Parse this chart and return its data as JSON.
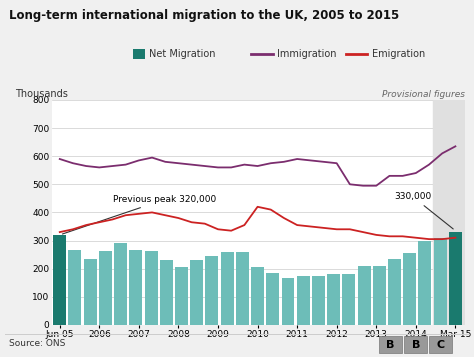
{
  "title": "Long-term international migration to the UK, 2005 to 2015",
  "ylabel": "Thousands",
  "source": "Source: ONS",
  "ylim": [
    0,
    800
  ],
  "yticks": [
    0,
    100,
    200,
    300,
    400,
    500,
    600,
    700,
    800
  ],
  "xtick_labels": [
    "Jun 05",
    "2006",
    "2007",
    "2008",
    "2009",
    "2010",
    "2011",
    "2012",
    "2013",
    "2014",
    "Mar 15"
  ],
  "bg_color": "#f0f0f0",
  "plot_bg": "#ffffff",
  "provisional_bg": "#e0e0e0",
  "bar_color_normal": "#6dbdb8",
  "bar_color_highlight": "#1a7a6e",
  "net_migration_values": [
    320,
    268,
    236,
    264,
    290,
    268,
    264,
    230,
    205,
    230,
    245,
    260,
    260,
    205,
    185,
    165,
    175,
    175,
    180,
    180,
    210,
    210,
    235,
    255,
    300,
    310,
    330
  ],
  "highlight_bars": [
    0,
    26
  ],
  "immigration_values": [
    590,
    575,
    565,
    560,
    565,
    570,
    585,
    595,
    580,
    575,
    570,
    565,
    560,
    560,
    570,
    565,
    575,
    580,
    590,
    585,
    580,
    575,
    500,
    495,
    495,
    530,
    530,
    540,
    570,
    610,
    635
  ],
  "emigration_values": [
    330,
    340,
    355,
    365,
    375,
    390,
    395,
    400,
    390,
    380,
    365,
    360,
    340,
    335,
    355,
    420,
    410,
    380,
    355,
    350,
    345,
    340,
    340,
    330,
    320,
    315,
    315,
    310,
    305,
    305,
    310
  ],
  "immigration_color": "#7b2d6e",
  "emigration_color": "#cc2222",
  "legend_net_color": "#1a7a6e",
  "annotation_peak": "Previous peak 320,000",
  "annotation_new": "330,000",
  "provisional_label": "Provisional figures",
  "n_bars": 27,
  "n_line_points": 31
}
